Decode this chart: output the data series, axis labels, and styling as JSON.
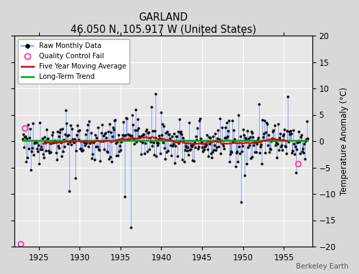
{
  "title": "GARLAND",
  "subtitle": "46.050 N, 105.917 W (United States)",
  "ylabel": "Temperature Anomaly (°C)",
  "watermark": "Berkeley Earth",
  "xlim": [
    1922.0,
    1958.5
  ],
  "ylim": [
    -20,
    20
  ],
  "yticks": [
    -20,
    -15,
    -10,
    -5,
    0,
    5,
    10,
    15,
    20
  ],
  "xticks": [
    1925,
    1930,
    1935,
    1940,
    1945,
    1950,
    1955
  ],
  "bg_color": "#d8d8d8",
  "plot_bg": "#e8e8e8",
  "grid_color": "#ffffff",
  "raw_color": "#6688ee",
  "dot_color": "#111111",
  "ma_color": "#dd0000",
  "trend_color": "#00aa00",
  "qc_color": "#ff44aa",
  "qc_fail_points": [
    [
      1923.25,
      2.5
    ],
    [
      1922.75,
      -19.5
    ],
    [
      1956.75,
      -4.3
    ]
  ],
  "seed": 77,
  "start_year": 1923.0,
  "end_year": 1957.92
}
